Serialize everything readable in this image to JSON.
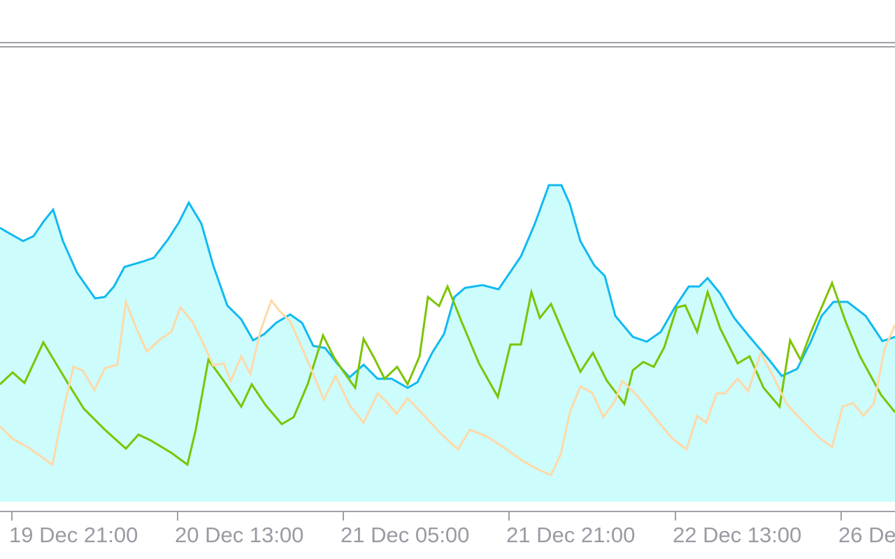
{
  "chart_data": {
    "type": "line",
    "title": "",
    "xlabel": "",
    "ylabel": "",
    "x_tick_labels": [
      "19 Dec 21:00",
      "20 Dec 13:00",
      "21 Dec 05:00",
      "21 Dec 21:00",
      "22 Dec 13:00",
      "26 De"
    ],
    "grid": false,
    "legend": "none",
    "colors": {
      "background": "#ffffff",
      "area_fill": "#ccfcfc",
      "border": "#a0a0a8",
      "tick_label": "#9a9aa4"
    },
    "series": [
      {
        "style": "area-line",
        "color": "#12b9f0",
        "points": [
          [
            0,
            326
          ],
          [
            10,
            332
          ],
          [
            33,
            345
          ],
          [
            48,
            338
          ],
          [
            63,
            316
          ],
          [
            76,
            300
          ],
          [
            90,
            345
          ],
          [
            110,
            390
          ],
          [
            136,
            427
          ],
          [
            150,
            425
          ],
          [
            163,
            410
          ],
          [
            178,
            382
          ],
          [
            202,
            375
          ],
          [
            220,
            369
          ],
          [
            240,
            343
          ],
          [
            256,
            318
          ],
          [
            270,
            290
          ],
          [
            288,
            320
          ],
          [
            305,
            380
          ],
          [
            325,
            437
          ],
          [
            345,
            457
          ],
          [
            362,
            487
          ],
          [
            378,
            478
          ],
          [
            395,
            462
          ],
          [
            415,
            450
          ],
          [
            432,
            462
          ],
          [
            448,
            495
          ],
          [
            465,
            498
          ],
          [
            482,
            520
          ],
          [
            500,
            540
          ],
          [
            520,
            522
          ],
          [
            540,
            542
          ],
          [
            560,
            542
          ],
          [
            583,
            555
          ],
          [
            597,
            547
          ],
          [
            618,
            505
          ],
          [
            635,
            478
          ],
          [
            650,
            425
          ],
          [
            665,
            412
          ],
          [
            690,
            408
          ],
          [
            713,
            414
          ],
          [
            745,
            367
          ],
          [
            765,
            320
          ],
          [
            785,
            265
          ],
          [
            803,
            265
          ],
          [
            815,
            292
          ],
          [
            830,
            345
          ],
          [
            850,
            380
          ],
          [
            865,
            395
          ],
          [
            880,
            452
          ],
          [
            905,
            482
          ],
          [
            925,
            489
          ],
          [
            945,
            475
          ],
          [
            965,
            440
          ],
          [
            985,
            410
          ],
          [
            1000,
            410
          ],
          [
            1012,
            398
          ],
          [
            1030,
            420
          ],
          [
            1050,
            455
          ],
          [
            1072,
            482
          ],
          [
            1100,
            515
          ],
          [
            1118,
            538
          ],
          [
            1140,
            528
          ],
          [
            1160,
            488
          ],
          [
            1175,
            452
          ],
          [
            1192,
            432
          ],
          [
            1212,
            432
          ],
          [
            1238,
            452
          ],
          [
            1262,
            488
          ],
          [
            1272,
            485
          ],
          [
            1280,
            482
          ]
        ]
      },
      {
        "style": "line",
        "color": "#7cc400",
        "points": [
          [
            0,
            550
          ],
          [
            18,
            533
          ],
          [
            35,
            548
          ],
          [
            62,
            490
          ],
          [
            95,
            545
          ],
          [
            120,
            585
          ],
          [
            150,
            615
          ],
          [
            180,
            642
          ],
          [
            198,
            622
          ],
          [
            215,
            630
          ],
          [
            245,
            648
          ],
          [
            268,
            665
          ],
          [
            280,
            615
          ],
          [
            298,
            515
          ],
          [
            320,
            545
          ],
          [
            345,
            582
          ],
          [
            360,
            550
          ],
          [
            380,
            580
          ],
          [
            403,
            607
          ],
          [
            420,
            597
          ],
          [
            440,
            550
          ],
          [
            462,
            480
          ],
          [
            478,
            512
          ],
          [
            490,
            530
          ],
          [
            508,
            555
          ],
          [
            520,
            485
          ],
          [
            535,
            512
          ],
          [
            550,
            542
          ],
          [
            568,
            525
          ],
          [
            583,
            550
          ],
          [
            600,
            510
          ],
          [
            612,
            425
          ],
          [
            628,
            438
          ],
          [
            640,
            410
          ],
          [
            660,
            460
          ],
          [
            685,
            520
          ],
          [
            712,
            568
          ],
          [
            730,
            493
          ],
          [
            745,
            493
          ],
          [
            760,
            418
          ],
          [
            772,
            455
          ],
          [
            788,
            435
          ],
          [
            810,
            487
          ],
          [
            830,
            532
          ],
          [
            848,
            505
          ],
          [
            868,
            545
          ],
          [
            893,
            578
          ],
          [
            905,
            530
          ],
          [
            920,
            518
          ],
          [
            935,
            525
          ],
          [
            950,
            497
          ],
          [
            968,
            440
          ],
          [
            980,
            437
          ],
          [
            997,
            475
          ],
          [
            1012,
            418
          ],
          [
            1030,
            470
          ],
          [
            1055,
            520
          ],
          [
            1072,
            510
          ],
          [
            1092,
            555
          ],
          [
            1115,
            582
          ],
          [
            1130,
            487
          ],
          [
            1145,
            515
          ],
          [
            1160,
            475
          ],
          [
            1190,
            405
          ],
          [
            1210,
            462
          ],
          [
            1230,
            510
          ],
          [
            1260,
            565
          ],
          [
            1280,
            590
          ]
        ]
      },
      {
        "style": "line",
        "color": "#ffd9a8",
        "points": [
          [
            0,
            610
          ],
          [
            18,
            628
          ],
          [
            40,
            640
          ],
          [
            75,
            665
          ],
          [
            90,
            590
          ],
          [
            105,
            525
          ],
          [
            118,
            530
          ],
          [
            135,
            558
          ],
          [
            150,
            527
          ],
          [
            168,
            522
          ],
          [
            180,
            432
          ],
          [
            195,
            470
          ],
          [
            210,
            503
          ],
          [
            230,
            485
          ],
          [
            245,
            475
          ],
          [
            258,
            440
          ],
          [
            275,
            460
          ],
          [
            290,
            490
          ],
          [
            305,
            523
          ],
          [
            320,
            520
          ],
          [
            330,
            545
          ],
          [
            345,
            510
          ],
          [
            358,
            535
          ],
          [
            373,
            472
          ],
          [
            388,
            430
          ],
          [
            400,
            445
          ],
          [
            415,
            460
          ],
          [
            435,
            505
          ],
          [
            450,
            540
          ],
          [
            463,
            572
          ],
          [
            480,
            538
          ],
          [
            500,
            580
          ],
          [
            520,
            605
          ],
          [
            540,
            563
          ],
          [
            553,
            575
          ],
          [
            567,
            592
          ],
          [
            583,
            570
          ],
          [
            605,
            593
          ],
          [
            630,
            620
          ],
          [
            655,
            643
          ],
          [
            672,
            615
          ],
          [
            697,
            625
          ],
          [
            720,
            640
          ],
          [
            748,
            660
          ],
          [
            770,
            672
          ],
          [
            788,
            680
          ],
          [
            802,
            650
          ],
          [
            815,
            590
          ],
          [
            830,
            553
          ],
          [
            847,
            562
          ],
          [
            863,
            597
          ],
          [
            880,
            573
          ],
          [
            890,
            545
          ],
          [
            910,
            565
          ],
          [
            925,
            583
          ],
          [
            945,
            608
          ],
          [
            962,
            628
          ],
          [
            982,
            643
          ],
          [
            997,
            595
          ],
          [
            1010,
            605
          ],
          [
            1025,
            563
          ],
          [
            1037,
            563
          ],
          [
            1055,
            542
          ],
          [
            1070,
            560
          ],
          [
            1088,
            505
          ],
          [
            1105,
            537
          ],
          [
            1125,
            578
          ],
          [
            1150,
            605
          ],
          [
            1170,
            625
          ],
          [
            1190,
            640
          ],
          [
            1205,
            582
          ],
          [
            1220,
            577
          ],
          [
            1235,
            595
          ],
          [
            1250,
            577
          ],
          [
            1265,
            500
          ],
          [
            1280,
            465
          ]
        ]
      }
    ]
  }
}
